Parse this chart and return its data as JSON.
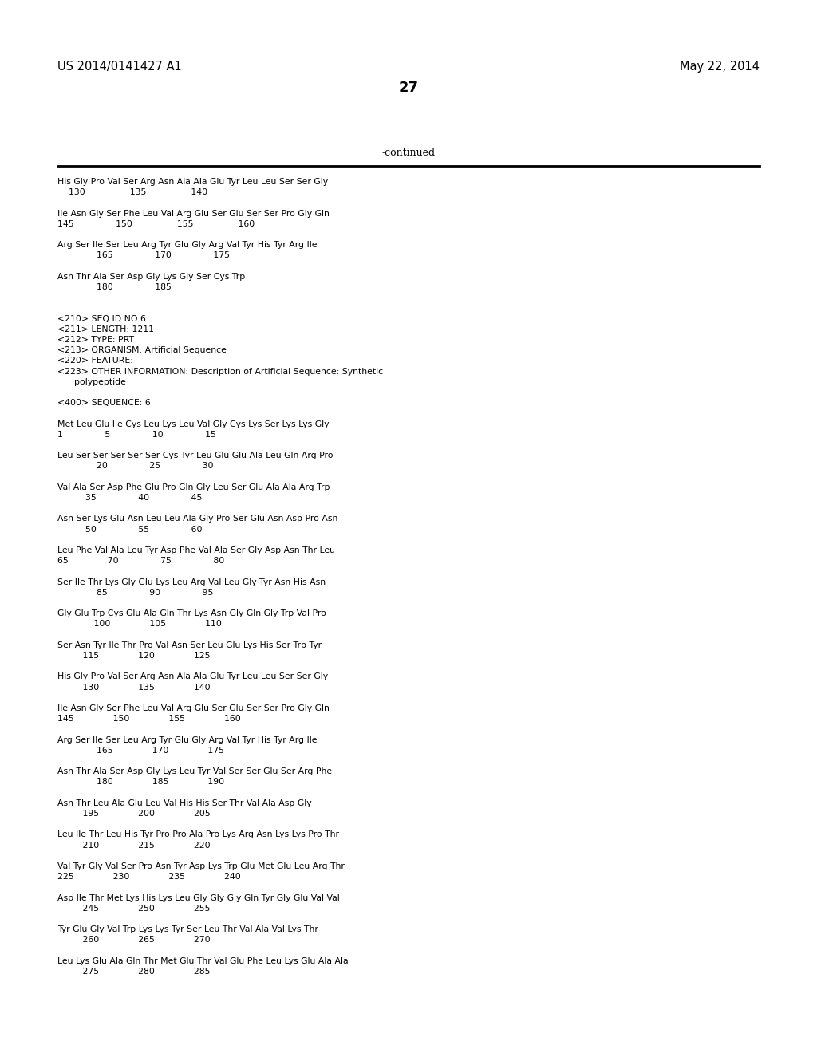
{
  "header_left": "US 2014/0141427 A1",
  "header_right": "May 22, 2014",
  "page_number": "27",
  "continued_label": "-continued",
  "background_color": "#ffffff",
  "text_color": "#000000",
  "content": [
    "His Gly Pro Val Ser Arg Asn Ala Ala Glu Tyr Leu Leu Ser Ser Gly",
    "    130                135                140",
    "",
    "Ile Asn Gly Ser Phe Leu Val Arg Glu Ser Glu Ser Ser Pro Gly Gln",
    "145               150                155                160",
    "",
    "Arg Ser Ile Ser Leu Arg Tyr Glu Gly Arg Val Tyr His Tyr Arg Ile",
    "              165               170               175",
    "",
    "Asn Thr Ala Ser Asp Gly Lys Gly Ser Cys Trp",
    "              180               185",
    "",
    "",
    "<210> SEQ ID NO 6",
    "<211> LENGTH: 1211",
    "<212> TYPE: PRT",
    "<213> ORGANISM: Artificial Sequence",
    "<220> FEATURE:",
    "<223> OTHER INFORMATION: Description of Artificial Sequence: Synthetic",
    "      polypeptide",
    "",
    "<400> SEQUENCE: 6",
    "",
    "Met Leu Glu Ile Cys Leu Lys Leu Val Gly Cys Lys Ser Lys Lys Gly",
    "1               5               10               15",
    "",
    "Leu Ser Ser Ser Ser Ser Cys Tyr Leu Glu Glu Ala Leu Gln Arg Pro",
    "              20               25               30",
    "",
    "Val Ala Ser Asp Phe Glu Pro Gln Gly Leu Ser Glu Ala Ala Arg Trp",
    "          35               40               45",
    "",
    "Asn Ser Lys Glu Asn Leu Leu Ala Gly Pro Ser Glu Asn Asp Pro Asn",
    "          50               55               60",
    "",
    "Leu Phe Val Ala Leu Tyr Asp Phe Val Ala Ser Gly Asp Asn Thr Leu",
    "65              70               75               80",
    "",
    "Ser Ile Thr Lys Gly Glu Lys Leu Arg Val Leu Gly Tyr Asn His Asn",
    "              85               90               95",
    "",
    "Gly Glu Trp Cys Glu Ala Gln Thr Lys Asn Gly Gln Gly Trp Val Pro",
    "             100              105              110",
    "",
    "Ser Asn Tyr Ile Thr Pro Val Asn Ser Leu Glu Lys His Ser Trp Tyr",
    "         115              120              125",
    "",
    "His Gly Pro Val Ser Arg Asn Ala Ala Glu Tyr Leu Leu Ser Ser Gly",
    "         130              135              140",
    "",
    "Ile Asn Gly Ser Phe Leu Val Arg Glu Ser Glu Ser Ser Pro Gly Gln",
    "145              150              155              160",
    "",
    "Arg Ser Ile Ser Leu Arg Tyr Glu Gly Arg Val Tyr His Tyr Arg Ile",
    "              165              170              175",
    "",
    "Asn Thr Ala Ser Asp Gly Lys Leu Tyr Val Ser Ser Glu Ser Arg Phe",
    "              180              185              190",
    "",
    "Asn Thr Leu Ala Glu Leu Val His His Ser Thr Val Ala Asp Gly",
    "         195              200              205",
    "",
    "Leu Ile Thr Leu His Tyr Pro Pro Ala Pro Lys Arg Asn Lys Lys Pro Thr",
    "         210              215              220",
    "",
    "Val Tyr Gly Val Ser Pro Asn Tyr Asp Lys Trp Glu Met Glu Leu Arg Thr",
    "225              230              235              240",
    "",
    "Asp Ile Thr Met Lys His Lys Leu Gly Gly Gly Gln Tyr Gly Glu Val Val",
    "         245              250              255",
    "",
    "Tyr Glu Gly Val Trp Lys Lys Tyr Ser Leu Thr Val Ala Val Lys Thr",
    "         260              265              270",
    "",
    "Leu Lys Glu Ala Gln Thr Met Glu Thr Val Glu Phe Leu Lys Glu Ala Ala",
    "         275              280              285"
  ]
}
